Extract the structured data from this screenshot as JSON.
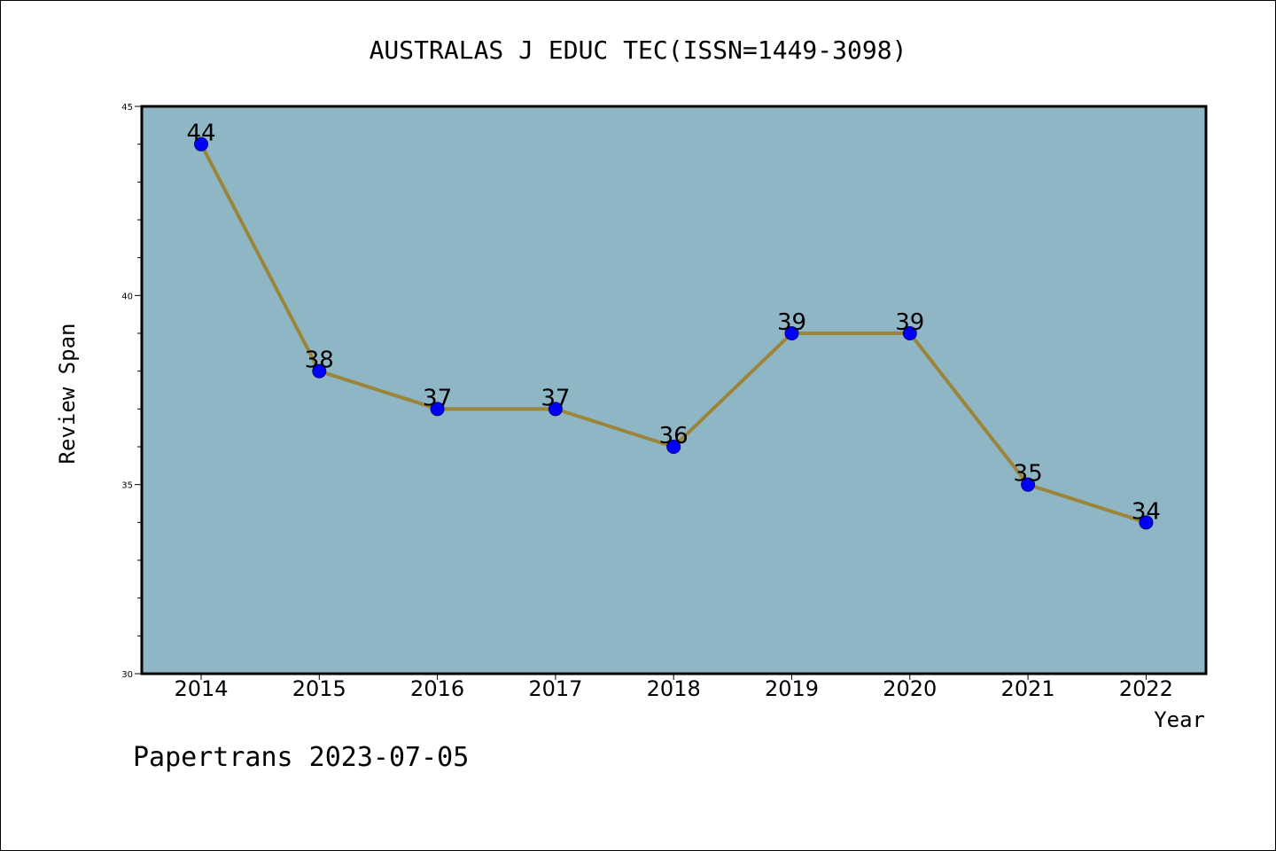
{
  "chart_data": {
    "type": "line",
    "title": "AUSTRALAS J EDUC TEC(ISSN=1449-3098)",
    "xlabel": "Year",
    "ylabel": "Review Span",
    "categories": [
      "2014",
      "2015",
      "2016",
      "2017",
      "2018",
      "2019",
      "2020",
      "2021",
      "2022"
    ],
    "values": [
      44,
      38,
      37,
      37,
      36,
      39,
      39,
      35,
      34
    ],
    "ylim": [
      30,
      45
    ],
    "yticks": [
      30,
      35,
      40,
      45
    ],
    "grid": false,
    "legend": "none",
    "colors": {
      "plot_background": "#8fb6c5",
      "line": "#9b853a",
      "marker": "#0000ff",
      "marker_edge": "#000080"
    }
  },
  "footer": {
    "watermark": "Papertrans 2023-07-05"
  }
}
